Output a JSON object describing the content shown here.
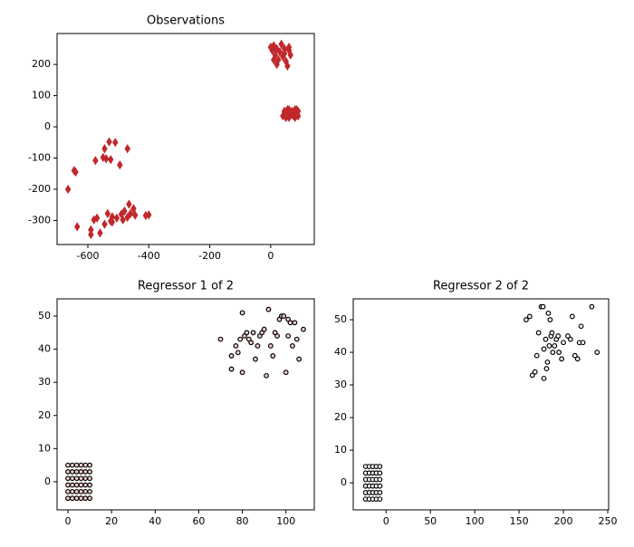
{
  "chart_data": [
    {
      "type": "scatter",
      "title": "Observations",
      "color": "#c0282b",
      "marker": "diamond",
      "x": [
        0,
        5,
        10,
        15,
        20,
        25,
        30,
        35,
        40,
        45,
        50,
        55,
        60,
        65,
        10,
        20,
        45,
        60,
        40,
        45,
        50,
        55,
        60,
        65,
        70,
        75,
        80,
        85,
        90,
        50,
        60,
        70,
        80,
        90,
        45,
        85,
        -645,
        -640,
        -665,
        -575,
        -550,
        -545,
        -530,
        -525,
        -510,
        -495,
        -470,
        -540,
        -635,
        -590,
        -590,
        -580,
        -570,
        -560,
        -545,
        -535,
        -525,
        -520,
        -505,
        -490,
        -480,
        -470,
        -465,
        -460,
        -450,
        -445,
        -410,
        -400,
        -520,
        -485
      ],
      "y": [
        255,
        245,
        260,
        230,
        250,
        215,
        240,
        265,
        225,
        250,
        210,
        195,
        245,
        230,
        215,
        200,
        235,
        255,
        35,
        50,
        40,
        55,
        30,
        45,
        50,
        35,
        55,
        40,
        50,
        30,
        55,
        40,
        30,
        35,
        40,
        55,
        -140,
        -145,
        -200,
        -108,
        -98,
        -70,
        -48,
        -105,
        -50,
        -122,
        -70,
        -102,
        -320,
        -330,
        -345,
        -298,
        -292,
        -340,
        -312,
        -278,
        -302,
        -288,
        -292,
        -280,
        -270,
        -290,
        -248,
        -278,
        -262,
        -283,
        -284,
        -282,
        -305,
        -298
      ],
      "xlim": [
        -701,
        143
      ],
      "ylim": [
        -377,
        299
      ],
      "xticks": [
        -600,
        -400,
        -200,
        0
      ],
      "yticks": [
        -300,
        -200,
        -100,
        0,
        100,
        200
      ]
    },
    {
      "type": "scatter",
      "title": "Regressor 1 of 2",
      "color": "#f5cfcf",
      "edgecolor": "#000000",
      "marker": "circle",
      "x": [
        0,
        0,
        0,
        0,
        0,
        0,
        2,
        2,
        2,
        2,
        2,
        2,
        4,
        4,
        4,
        4,
        4,
        4,
        6,
        6,
        6,
        6,
        6,
        6,
        8,
        8,
        8,
        8,
        8,
        8,
        10,
        10,
        10,
        10,
        10,
        10,
        70,
        75,
        75,
        77,
        78,
        79,
        80,
        80,
        81,
        82,
        83,
        84,
        85,
        86,
        87,
        88,
        89,
        90,
        91,
        92,
        93,
        94,
        95,
        96,
        97,
        98,
        99,
        100,
        101,
        101,
        102,
        103,
        104,
        105,
        106,
        108
      ],
      "y": [
        -5,
        -3,
        -1,
        1,
        3,
        5,
        -5,
        -3,
        -1,
        1,
        3,
        5,
        -5,
        -3,
        -1,
        1,
        3,
        5,
        -5,
        -3,
        -1,
        1,
        3,
        5,
        -5,
        -3,
        -1,
        1,
        3,
        5,
        -5,
        -3,
        -1,
        1,
        3,
        5,
        43,
        34,
        38,
        41,
        39,
        43,
        33,
        51,
        44,
        45,
        43,
        42,
        45,
        37,
        41,
        44,
        45,
        46,
        32,
        52,
        41,
        38,
        45,
        44,
        49,
        50,
        50,
        33,
        49,
        44,
        48,
        41,
        48,
        43,
        37,
        46
      ],
      "xlim": [
        -5,
        113
      ],
      "ylim": [
        -8.5,
        55.2
      ],
      "xticks": [
        0,
        20,
        40,
        60,
        80,
        100
      ],
      "yticks": [
        0,
        10,
        20,
        30,
        40,
        50
      ]
    },
    {
      "type": "scatter",
      "title": "Regressor 2 of 2",
      "color": "#ffffff",
      "edgecolor": "#000000",
      "marker": "circle",
      "x": [
        -23,
        -23,
        -23,
        -23,
        -23,
        -23,
        -19,
        -19,
        -19,
        -19,
        -19,
        -19,
        -15,
        -15,
        -15,
        -15,
        -15,
        -15,
        -11,
        -11,
        -11,
        -11,
        -11,
        -11,
        -7,
        -7,
        -7,
        -7,
        -7,
        -7,
        158,
        162,
        165,
        168,
        170,
        172,
        175,
        177,
        178,
        178,
        180,
        181,
        182,
        183,
        184,
        185,
        186,
        187,
        188,
        190,
        192,
        194,
        195,
        198,
        200,
        205,
        208,
        210,
        213,
        216,
        218,
        220,
        222,
        232,
        238
      ],
      "y": [
        -5,
        -3,
        -1,
        1,
        3,
        5,
        -5,
        -3,
        -1,
        1,
        3,
        5,
        -5,
        -3,
        -1,
        1,
        3,
        5,
        -5,
        -3,
        -1,
        1,
        3,
        5,
        -5,
        -3,
        -1,
        1,
        3,
        5,
        50,
        51,
        33,
        34,
        39,
        46,
        54,
        54,
        41,
        32,
        44,
        35,
        37,
        52,
        42,
        50,
        45,
        46,
        40,
        42,
        44,
        45,
        40,
        38,
        43,
        45,
        44,
        51,
        39,
        38,
        43,
        48,
        43,
        54,
        40
      ],
      "xlim": [
        -37,
        251
      ],
      "ylim": [
        -8.3,
        56.4
      ],
      "xticks": [
        0,
        50,
        100,
        150,
        200,
        250
      ],
      "yticks": [
        0,
        10,
        20,
        30,
        40,
        50
      ]
    }
  ]
}
